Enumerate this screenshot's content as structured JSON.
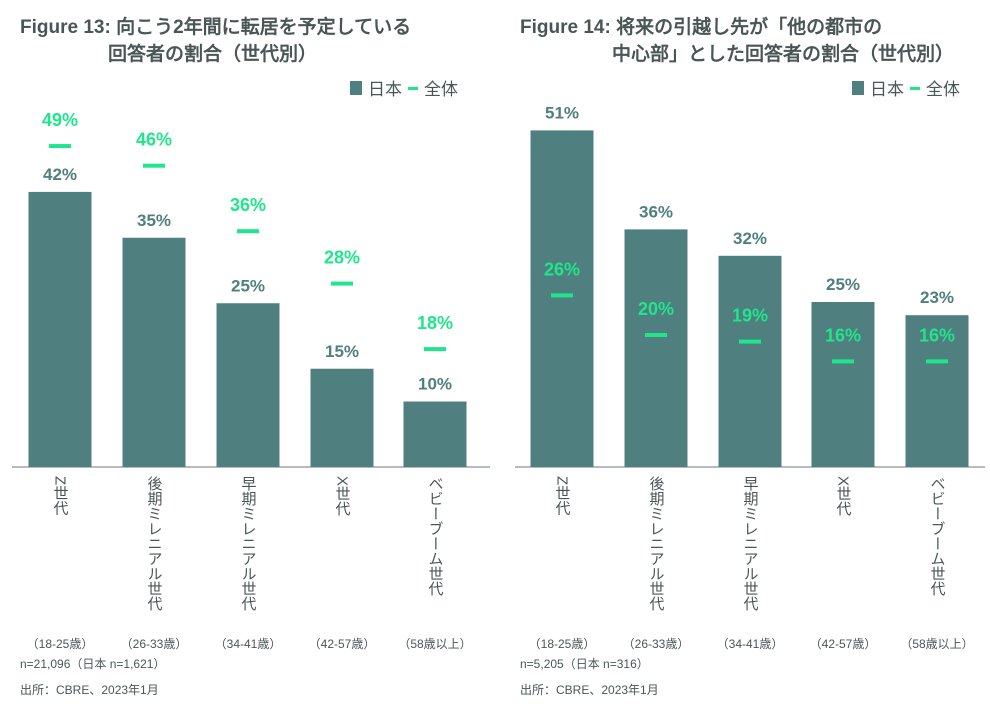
{
  "colors": {
    "japan_bar": "#4f7f7f",
    "total_marker": "#1fe58c",
    "text": "#4a5656"
  },
  "chart_data": [
    {
      "type": "bar",
      "title_line1": "Figure 13: 向こう2年間に転居を予定している",
      "title_line2": "回答者の割合（世代別）",
      "legend": {
        "japan": "日本",
        "total": "全体",
        "placement": "top-right"
      },
      "categories": [
        "Z世代",
        "後期ミレニアル世代",
        "早期ミレニアル世代",
        "X世代",
        "ベビーブーム世代"
      ],
      "age_ranges": [
        "（18-25歳）",
        "（26-33歳）",
        "（34-41歳）",
        "（42-57歳）",
        "（58歳以上）"
      ],
      "series": [
        {
          "name": "日本",
          "values": [
            42,
            35,
            25,
            15,
            10
          ],
          "labels": [
            "42%",
            "35%",
            "25%",
            "15%",
            "10%"
          ]
        },
        {
          "name": "全体",
          "values": [
            49,
            46,
            36,
            28,
            18
          ],
          "labels": [
            "49%",
            "46%",
            "36%",
            "28%",
            "18%"
          ]
        }
      ],
      "ylim": [
        0,
        60
      ],
      "sample_note": "n=21,096（日本 n=1,621）",
      "source": "出所：CBRE、2023年1月"
    },
    {
      "type": "bar",
      "title_line1": "Figure 14: 将来の引越し先が「他の都市の",
      "title_line2": "中心部」とした回答者の割合（世代別）",
      "legend": {
        "japan": "日本",
        "total": "全体",
        "placement": "top-right"
      },
      "categories": [
        "Z世代",
        "後期ミレニアル世代",
        "早期ミレニアル世代",
        "X世代",
        "ベビーブーム世代"
      ],
      "age_ranges": [
        "（18-25歳）",
        "（26-33歳）",
        "（34-41歳）",
        "（42-57歳）",
        "（58歳以上）"
      ],
      "series": [
        {
          "name": "日本",
          "values": [
            51,
            36,
            32,
            25,
            23
          ],
          "labels": [
            "51%",
            "36%",
            "32%",
            "25%",
            "23%"
          ]
        },
        {
          "name": "全体",
          "values": [
            26,
            20,
            19,
            16,
            16
          ],
          "labels": [
            "26%",
            "20%",
            "19%",
            "16%",
            "16%"
          ]
        }
      ],
      "ylim": [
        0,
        60
      ],
      "sample_note": "n=5,205（日本 n=316）",
      "source": "出所：CBRE、2023年1月"
    }
  ]
}
